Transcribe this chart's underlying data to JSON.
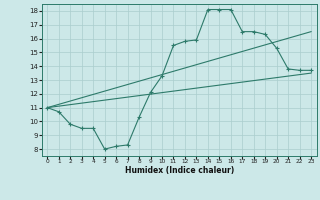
{
  "xlabel": "Humidex (Indice chaleur)",
  "bg_color": "#cce8e8",
  "grid_color": "#aacece",
  "line_color": "#2d7a6a",
  "xlim": [
    -0.5,
    23.5
  ],
  "ylim": [
    7.5,
    18.5
  ],
  "xticks": [
    0,
    1,
    2,
    3,
    4,
    5,
    6,
    7,
    8,
    9,
    10,
    11,
    12,
    13,
    14,
    15,
    16,
    17,
    18,
    19,
    20,
    21,
    22,
    23
  ],
  "yticks": [
    8,
    9,
    10,
    11,
    12,
    13,
    14,
    15,
    16,
    17,
    18
  ],
  "line1_x": [
    0,
    1,
    2,
    3,
    4,
    5,
    6,
    7,
    8,
    9,
    10,
    11,
    12,
    13,
    14,
    15,
    16,
    17,
    18,
    19,
    20,
    21,
    22,
    23
  ],
  "line1_y": [
    11.0,
    10.7,
    9.8,
    9.5,
    9.5,
    8.0,
    8.2,
    8.3,
    10.3,
    12.1,
    13.3,
    15.5,
    15.8,
    15.9,
    18.1,
    18.1,
    18.1,
    16.5,
    16.5,
    16.3,
    15.3,
    13.8,
    13.7,
    13.7
  ],
  "line2_x": [
    0,
    23
  ],
  "line2_y": [
    11.0,
    13.5
  ],
  "line3_x": [
    0,
    23
  ],
  "line3_y": [
    11.0,
    16.5
  ]
}
